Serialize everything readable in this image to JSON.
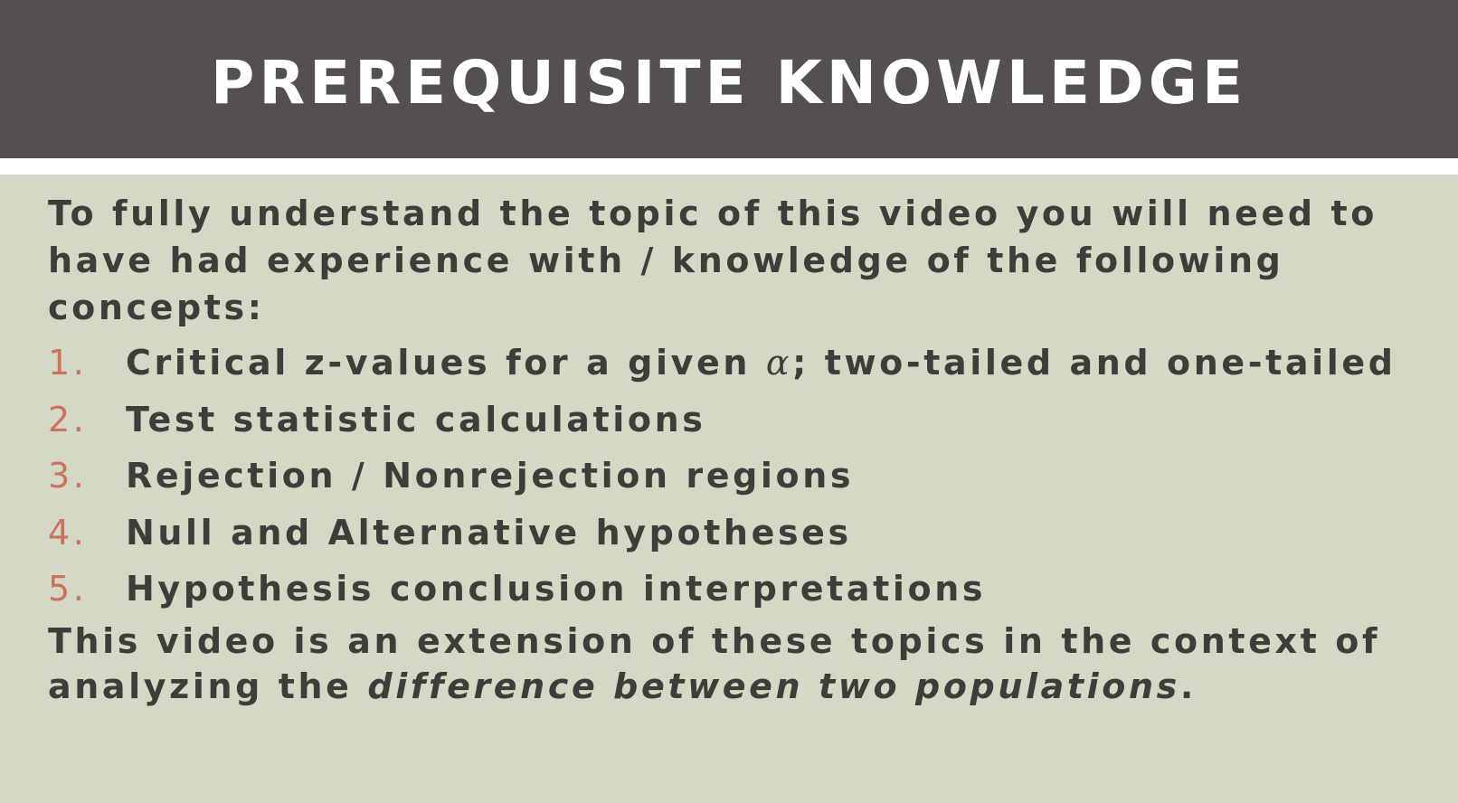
{
  "header": {
    "title": "PREREQUISITE KNOWLEDGE"
  },
  "intro": "To fully understand the topic of this video you will need to have had experience with / knowledge of the following concepts:",
  "concepts": [
    {
      "number": "1.",
      "text_before": "Critical z-values for a given ",
      "symbol": "α",
      "text_after": "; two-tailed and one-tailed"
    },
    {
      "number": "2.",
      "text": "Test statistic calculations"
    },
    {
      "number": "3.",
      "text": "Rejection / Nonrejection regions"
    },
    {
      "number": "4.",
      "text": "Null and Alternative hypotheses"
    },
    {
      "number": "5.",
      "text": "Hypothesis conclusion interpretations"
    }
  ],
  "outro": {
    "text": "This video is an extension of these topics in the context of analyzing the ",
    "emphasis": "difference between two populations",
    "end": "."
  },
  "colors": {
    "header_bg": "#554e52",
    "body_bg": "#d5d8c5",
    "text": "#3f3d3a",
    "accent_numbers": "#c8735e"
  }
}
